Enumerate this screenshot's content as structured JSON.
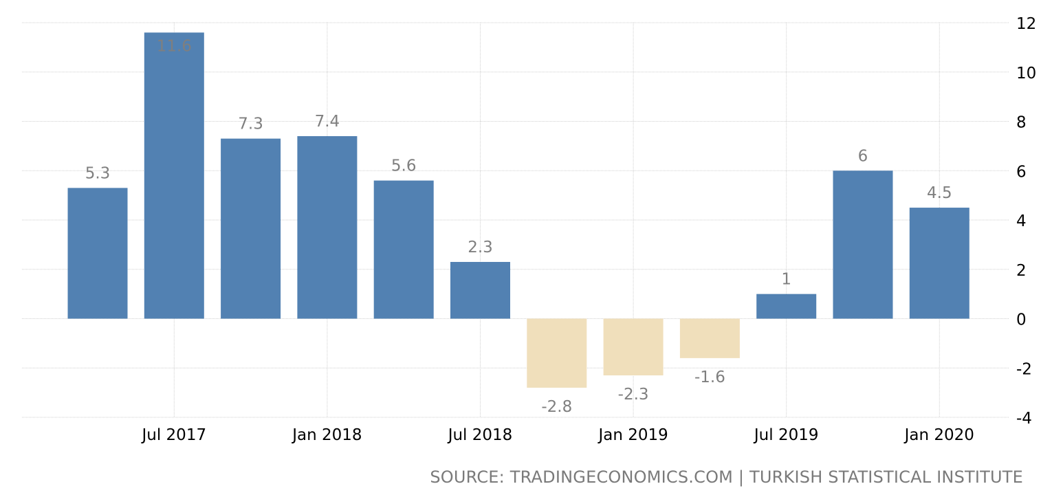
{
  "chart_data": {
    "type": "bar",
    "categories": [
      "2017-04",
      "2017-07",
      "2017-10",
      "2018-01",
      "2018-04",
      "2018-07",
      "2018-10",
      "2019-01",
      "2019-04",
      "2019-07",
      "2019-10",
      "2020-01"
    ],
    "values": [
      5.3,
      11.6,
      7.3,
      7.4,
      5.6,
      2.3,
      -2.8,
      -2.3,
      -1.6,
      1,
      6,
      4.5
    ],
    "data_labels": [
      "5.3",
      "11.6",
      "7.3",
      "7.4",
      "5.6",
      "2.3",
      "-2.8",
      "-2.3",
      "-1.6",
      "1",
      "6",
      "4.5"
    ],
    "x_ticks": [
      {
        "date": "2017-07",
        "label": "Jul 2017"
      },
      {
        "date": "2018-01",
        "label": "Jan 2018"
      },
      {
        "date": "2018-07",
        "label": "Jul 2018"
      },
      {
        "date": "2019-01",
        "label": "Jan 2019"
      },
      {
        "date": "2019-07",
        "label": "Jul 2019"
      },
      {
        "date": "2020-01",
        "label": "Jan 2020"
      }
    ],
    "y_ticks": [
      12,
      10,
      8,
      6,
      4,
      2,
      0,
      -2,
      -4
    ],
    "ylim": [
      -4,
      12
    ],
    "y_axis_position": "right",
    "grid": true,
    "colors": {
      "positive": "#5281b2",
      "negative": "#f0dfbb",
      "label": "#7f7f7f",
      "tick": "#000000",
      "grid": "#cfcfcf"
    }
  },
  "source": "SOURCE: TRADINGECONOMICS.COM | TURKISH STATISTICAL INSTITUTE"
}
